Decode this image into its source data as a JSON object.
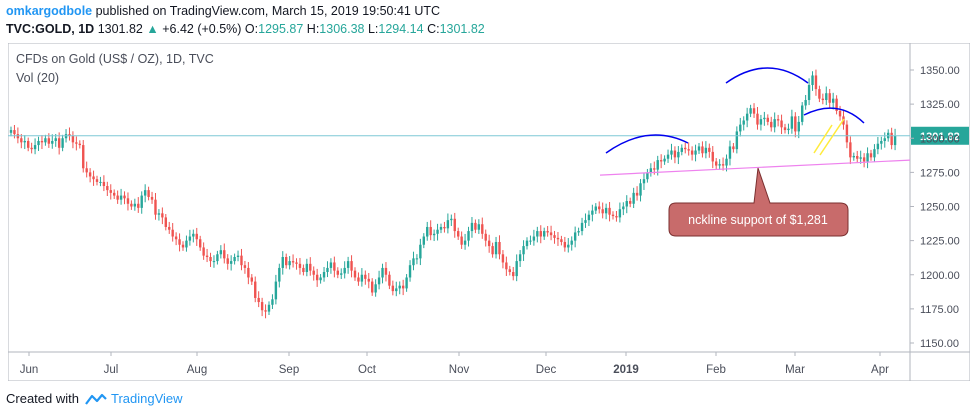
{
  "header": {
    "author": "omkargodbole",
    "published_text": " published on TradingView.com, March 15, 2019 19:50:41 UTC",
    "symbol": "TVC:GOLD, 1D",
    "last": "1301.82",
    "change": "+6.42 (+0.5%)",
    "o_label": "O:",
    "o_value": "1295.87",
    "h_label": "H:",
    "h_value": "1306.38",
    "l_label": "L:",
    "l_value": "1294.14",
    "c_label": "C:",
    "c_value": "1301.82"
  },
  "legend": {
    "title": "CFDs on Gold (US$ / OZ), 1D, TVC",
    "volume": "Vol (20)"
  },
  "footer": {
    "created_with": "Created with",
    "brand": "TradingView"
  },
  "colors": {
    "up": "#26a69a",
    "down": "#ef5350",
    "last_price_line": "#7fc8d6",
    "last_price_label": "#26a69a",
    "neckline": "#ee82ee",
    "shoulder_arcs": "#0000ee",
    "flag_lines": "#ffeb3b",
    "callout_fill": "#c86b6b",
    "callout_border": "#7a2f2f"
  },
  "chart_data": {
    "type": "candlestick",
    "title": "CFDs on Gold (US$ / OZ), 1D, TVC",
    "y_ticks": [
      "1350.00",
      "1325.00",
      "1300.00",
      "1275.00",
      "1250.00",
      "1225.00",
      "1200.00",
      "1175.00",
      "1150.00"
    ],
    "x_ticks": [
      "Jun",
      "Jul",
      "Aug",
      "Sep",
      "Oct",
      "Nov",
      "Dec",
      "2019",
      "Feb",
      "Mar",
      "Apr"
    ],
    "ylim": [
      1140,
      1360
    ],
    "last_price": 1301.82,
    "last_price_label": "1301.82",
    "annotation": "nckline support of $1,281",
    "neckline": {
      "from": 1273,
      "to": 1284
    },
    "series_close": [
      1306,
      1303,
      1300,
      1297,
      1298,
      1293,
      1292,
      1295,
      1298,
      1297,
      1300,
      1296,
      1298,
      1300,
      1293,
      1300,
      1303,
      1302,
      1297,
      1296,
      1295,
      1278,
      1275,
      1272,
      1270,
      1268,
      1268,
      1265,
      1262,
      1260,
      1258,
      1255,
      1258,
      1256,
      1252,
      1250,
      1252,
      1249,
      1258,
      1262,
      1257,
      1255,
      1244,
      1245,
      1242,
      1235,
      1233,
      1228,
      1226,
      1222,
      1220,
      1225,
      1228,
      1230,
      1226,
      1220,
      1214,
      1213,
      1210,
      1210,
      1215,
      1218,
      1212,
      1208,
      1210,
      1213,
      1214,
      1207,
      1205,
      1198,
      1195,
      1183,
      1180,
      1174,
      1173,
      1178,
      1182,
      1195,
      1205,
      1213,
      1207,
      1210,
      1209,
      1208,
      1205,
      1202,
      1208,
      1203,
      1200,
      1196,
      1198,
      1202,
      1205,
      1209,
      1203,
      1200,
      1201,
      1205,
      1210,
      1203,
      1198,
      1195,
      1200,
      1197,
      1195,
      1187,
      1193,
      1198,
      1205,
      1200,
      1192,
      1188,
      1190,
      1192,
      1190,
      1198,
      1207,
      1212,
      1212,
      1222,
      1228,
      1235,
      1229,
      1230,
      1233,
      1235,
      1234,
      1240,
      1241,
      1232,
      1228,
      1222,
      1225,
      1232,
      1238,
      1233,
      1237,
      1230,
      1225,
      1221,
      1215,
      1224,
      1215,
      1209,
      1204,
      1202,
      1199,
      1210,
      1215,
      1221,
      1225,
      1225,
      1228,
      1232,
      1228,
      1232,
      1231,
      1229,
      1227,
      1226,
      1224,
      1220,
      1222,
      1225,
      1231,
      1232,
      1238,
      1240,
      1244,
      1247,
      1250,
      1248,
      1245,
      1249,
      1244,
      1243,
      1242,
      1248,
      1250,
      1254,
      1252,
      1260,
      1258,
      1267,
      1270,
      1275,
      1278,
      1277,
      1284,
      1283,
      1285,
      1288,
      1291,
      1286,
      1290,
      1293,
      1292,
      1291,
      1288,
      1291,
      1294,
      1289,
      1293,
      1290,
      1283,
      1280,
      1281,
      1280,
      1285,
      1294,
      1292,
      1305,
      1310,
      1313,
      1318,
      1322,
      1318,
      1310,
      1314,
      1315,
      1312,
      1308,
      1314,
      1313,
      1308,
      1306,
      1307,
      1316,
      1305,
      1312,
      1324,
      1328,
      1339,
      1346,
      1336,
      1329,
      1328,
      1333,
      1326,
      1329,
      1320,
      1316,
      1310,
      1297,
      1286,
      1287,
      1285,
      1286,
      1283,
      1289,
      1286,
      1292,
      1296,
      1298,
      1300,
      1304,
      1295,
      1302
    ]
  }
}
